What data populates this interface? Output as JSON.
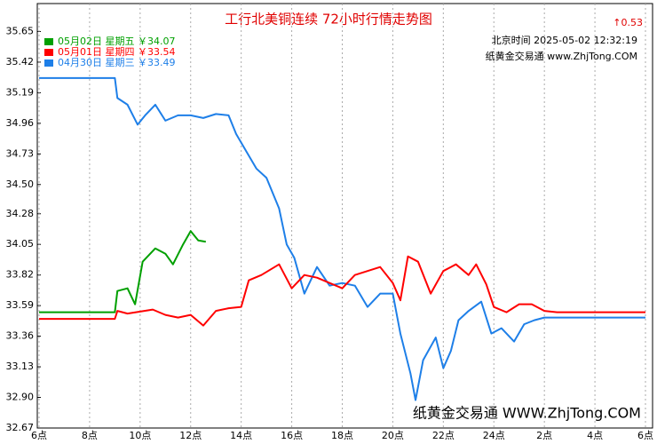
{
  "chart_data": {
    "type": "line",
    "title": "工行北美铜连续 72小时行情走势图",
    "annotations": [
      "↑0.53",
      "北京时间 2025-05-02 12:32:19",
      "纸黄金交易通 www.ZhjTong.COM",
      "纸黄金交易通 WWW.ZhjTong.COM"
    ],
    "xlim": [
      0,
      24
    ],
    "xticks": [
      {
        "value": 0,
        "label": "6点"
      },
      {
        "value": 2,
        "label": "8点"
      },
      {
        "value": 4,
        "label": "10点"
      },
      {
        "value": 6,
        "label": "12点"
      },
      {
        "value": 8,
        "label": "14点"
      },
      {
        "value": 10,
        "label": "16点"
      },
      {
        "value": 12,
        "label": "18点"
      },
      {
        "value": 14,
        "label": "20点"
      },
      {
        "value": 16,
        "label": "22点"
      },
      {
        "value": 18,
        "label": "24点"
      },
      {
        "value": 20,
        "label": "2点"
      },
      {
        "value": 22,
        "label": "4点"
      },
      {
        "value": 24,
        "label": "6点"
      }
    ],
    "ylim": [
      32.67,
      35.86
    ],
    "yticks": [
      35.65,
      35.42,
      35.19,
      34.96,
      34.73,
      {
        "value": 34.5,
        "label": "34.50"
      },
      34.28,
      34.05,
      33.82,
      33.59,
      33.36,
      33.13,
      {
        "value": 32.9,
        "label": "32.90"
      },
      32.67
    ],
    "grid": "x",
    "legend": "top-left",
    "series": [
      {
        "name": "05月02日 星期五 ￥34.07",
        "color": "#00a000",
        "x": [
          0,
          3.0,
          3.1,
          3.5,
          3.8,
          4.1,
          4.6,
          5,
          5.3,
          5.7,
          6,
          6.3,
          6.6
        ],
        "values": [
          33.54,
          33.54,
          33.7,
          33.72,
          33.6,
          33.92,
          34.02,
          33.98,
          33.9,
          34.05,
          34.15,
          34.08,
          34.07
        ]
      },
      {
        "name": "05月01日 星期四 ￥33.54",
        "color": "#ff0000",
        "x": [
          0,
          3.0,
          3.1,
          3.5,
          4.5,
          5,
          5.5,
          6,
          6.5,
          7,
          7.5,
          8,
          8.3,
          8.8,
          9.5,
          10,
          10.5,
          11,
          11.5,
          12,
          12.5,
          13,
          13.5,
          14,
          14.3,
          14.6,
          15,
          15.5,
          16,
          16.5,
          17,
          17.3,
          17.7,
          18,
          18.5,
          19,
          19.5,
          20,
          20.5,
          24
        ],
        "values": [
          33.49,
          33.49,
          33.55,
          33.53,
          33.56,
          33.52,
          33.5,
          33.52,
          33.44,
          33.55,
          33.57,
          33.58,
          33.78,
          33.82,
          33.9,
          33.72,
          33.82,
          33.8,
          33.76,
          33.72,
          33.82,
          33.85,
          33.88,
          33.76,
          33.63,
          33.96,
          33.92,
          33.68,
          33.85,
          33.9,
          33.82,
          33.9,
          33.75,
          33.58,
          33.54,
          33.6,
          33.6,
          33.55,
          33.54,
          33.54
        ]
      },
      {
        "name": "04月30日 星期三 ￥33.49",
        "color": "#1e7fe8",
        "x": [
          0,
          3.0,
          3.1,
          3.5,
          3.9,
          4.2,
          4.6,
          5,
          5.5,
          6,
          6.5,
          7,
          7.5,
          7.8,
          8.2,
          8.6,
          9,
          9.5,
          9.8,
          10.1,
          10.5,
          11,
          11.5,
          12,
          12.5,
          13,
          13.5,
          14,
          14.3,
          14.7,
          14.9,
          15.2,
          15.7,
          16,
          16.3,
          16.6,
          17,
          17.5,
          17.9,
          18.3,
          18.8,
          19.2,
          19.6,
          20,
          24
        ],
        "values": [
          35.3,
          35.3,
          35.15,
          35.1,
          34.95,
          35.02,
          35.1,
          34.98,
          35.02,
          35.02,
          35.0,
          35.03,
          35.02,
          34.88,
          34.75,
          34.62,
          34.55,
          34.32,
          34.05,
          33.95,
          33.68,
          33.88,
          33.74,
          33.76,
          33.74,
          33.58,
          33.68,
          33.68,
          33.38,
          33.08,
          32.88,
          33.18,
          33.35,
          33.12,
          33.25,
          33.48,
          33.55,
          33.62,
          33.38,
          33.42,
          33.32,
          33.45,
          33.48,
          33.5,
          33.5
        ]
      }
    ]
  }
}
